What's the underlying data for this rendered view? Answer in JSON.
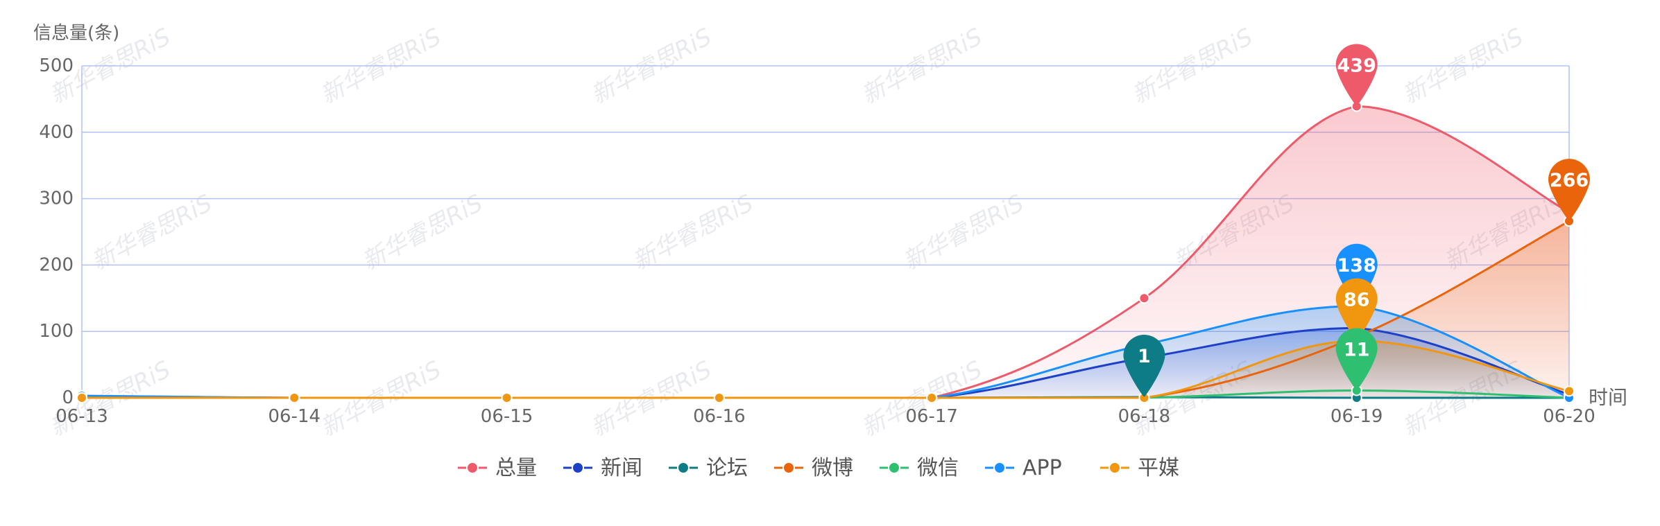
{
  "chart_data": {
    "type": "area",
    "y_axis_name": "信息量(条)",
    "x_axis_name": "时间",
    "categories": [
      "06-13",
      "06-14",
      "06-15",
      "06-16",
      "06-17",
      "06-18",
      "06-19",
      "06-20"
    ],
    "ylim": [
      0,
      500
    ],
    "yticks": [
      0,
      100,
      200,
      300,
      400,
      500
    ],
    "grid": true,
    "legend_position": "bottom",
    "series": [
      {
        "name": "总量",
        "color": "#ee5a6a",
        "values": [
          3,
          0,
          0,
          0,
          0,
          150,
          439,
          280
        ],
        "area": true
      },
      {
        "name": "新闻",
        "color": "#1e40c8",
        "values": [
          2,
          0,
          0,
          0,
          0,
          60,
          105,
          5
        ],
        "area": true
      },
      {
        "name": "论坛",
        "color": "#0e7c86",
        "values": [
          0,
          0,
          0,
          0,
          0,
          1,
          0,
          0
        ],
        "area": false
      },
      {
        "name": "微博",
        "color": "#ea640b",
        "values": [
          0,
          0,
          0,
          0,
          0,
          0,
          92,
          266
        ],
        "area": true
      },
      {
        "name": "微信",
        "color": "#2fbf71",
        "values": [
          0,
          0,
          0,
          0,
          0,
          0,
          11,
          0
        ],
        "area": false
      },
      {
        "name": "APP",
        "color": "#1890ff",
        "values": [
          3,
          0,
          0,
          0,
          0,
          80,
          138,
          0
        ],
        "area": true
      },
      {
        "name": "平媒",
        "color": "#f0960f",
        "values": [
          0,
          0,
          0,
          0,
          0,
          0,
          86,
          10
        ],
        "area": true
      }
    ],
    "markers": [
      {
        "series": "总量",
        "x": "06-19",
        "label": "439"
      },
      {
        "series": "微博",
        "x": "06-20",
        "label": "266"
      },
      {
        "series": "APP",
        "x": "06-19",
        "label": "138"
      },
      {
        "series": "平媒",
        "x": "06-19",
        "label": "86"
      },
      {
        "series": "微信",
        "x": "06-19",
        "label": "11"
      },
      {
        "series": "论坛",
        "x": "06-18",
        "label": "1"
      }
    ],
    "watermark": "新华睿思RiS"
  }
}
